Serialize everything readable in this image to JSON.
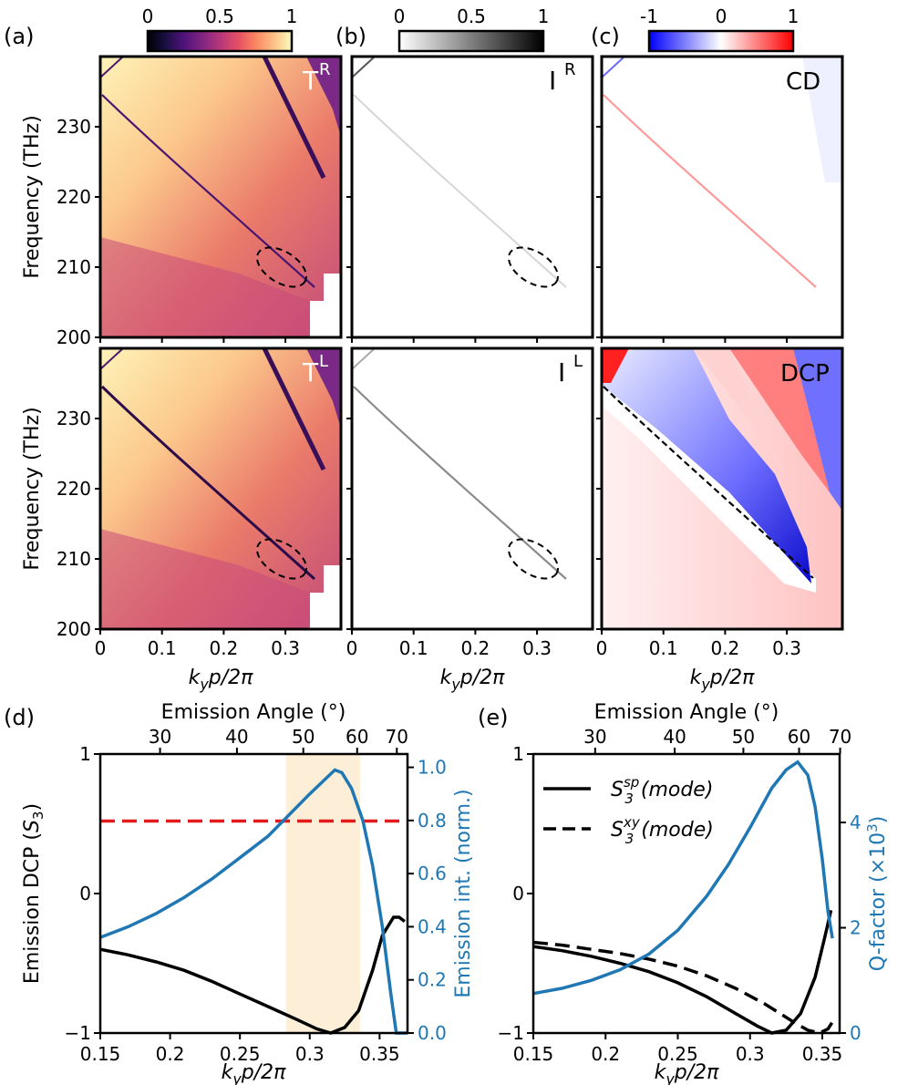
{
  "colors": {
    "emission_blue": "#1f77b4",
    "highlight": "#fdebd0",
    "dcp_threshold_red": "#e31a1c",
    "cd_negative": "#1a1aff",
    "cd_positive": "#ff1a1a"
  },
  "panel_labels": {
    "a": "(a)",
    "b": "(b)",
    "c": "(c)",
    "d": "(d)",
    "e": "(e)"
  },
  "colorbars": [
    {
      "id": "magma",
      "ticks": [
        "0",
        "0.5",
        "1"
      ],
      "range": [
        0,
        1
      ]
    },
    {
      "id": "greys",
      "ticks": [
        "0",
        "0.5",
        "1"
      ],
      "range": [
        0,
        1
      ]
    },
    {
      "id": "bwr",
      "ticks": [
        "-1",
        "0",
        "1"
      ],
      "range": [
        -1,
        1
      ]
    }
  ],
  "maps": {
    "ylabel": "Frequency (THz)",
    "xlabel": "k_y p/2π",
    "yticks": [
      "200",
      "210",
      "220",
      "230"
    ],
    "ytick_values": [
      200,
      210,
      220,
      230
    ],
    "xticks": [
      "0",
      "0.1",
      "0.2",
      "0.3"
    ],
    "xtick_values": [
      0,
      0.1,
      0.2,
      0.3
    ],
    "ylim": [
      200,
      240
    ],
    "xlim": [
      0,
      0.39
    ],
    "labels": {
      "TR": {
        "base": "T",
        "sup": "R"
      },
      "TL": {
        "base": "T",
        "sup": "L"
      },
      "IR": {
        "base": "I",
        "sup": "R"
      },
      "IL": {
        "base": "I",
        "sup": "L"
      },
      "CD": {
        "base": "CD",
        "sup": ""
      },
      "DCP": {
        "base": "DCP",
        "sup": ""
      }
    }
  },
  "chart_data": [
    {
      "panel": "d",
      "type": "line",
      "title": "",
      "top_xlabel": "Emission Angle (°)",
      "top_ticks": [
        "30",
        "40",
        "50",
        "60",
        "70"
      ],
      "top_tick_deg": [
        30,
        40,
        50,
        60,
        70
      ],
      "xlabel": "k_y p/2π",
      "xticks": [
        "0.15",
        "0.2",
        "0.25",
        "0.3",
        "0.35"
      ],
      "xtick_values": [
        0.15,
        0.2,
        0.25,
        0.3,
        0.35
      ],
      "xlim": [
        0.15,
        0.37
      ],
      "ylabel_left": "Emission DCP (S3)",
      "yticks_left": [
        "−1",
        "0",
        "1"
      ],
      "ytick_left_values": [
        -1,
        0,
        1
      ],
      "ylim_left": [
        -1,
        1
      ],
      "ylabel_right": "Emission int. (norm.)",
      "yticks_right": [
        "0.0",
        "0.2",
        "0.4",
        "0.6",
        "0.8",
        "1.0"
      ],
      "ytick_right_values": [
        0,
        0.2,
        0.4,
        0.6,
        0.8,
        1.0
      ],
      "ylim_right": [
        0,
        1.05
      ],
      "highlight_x": [
        0.283,
        0.336
      ],
      "threshold_left": 0.52,
      "series": [
        {
          "name": "Emission DCP",
          "axis": "left",
          "color": "#000000",
          "x": [
            0.15,
            0.17,
            0.19,
            0.21,
            0.23,
            0.25,
            0.27,
            0.29,
            0.305,
            0.315,
            0.325,
            0.335,
            0.345,
            0.352,
            0.36,
            0.364,
            0.368
          ],
          "y": [
            -0.4,
            -0.44,
            -0.49,
            -0.55,
            -0.63,
            -0.72,
            -0.81,
            -0.9,
            -0.97,
            -1.0,
            -0.96,
            -0.84,
            -0.55,
            -0.3,
            -0.17,
            -0.17,
            -0.2
          ]
        },
        {
          "name": "Emission int.",
          "axis": "right",
          "color": "#1f77b4",
          "x": [
            0.15,
            0.17,
            0.19,
            0.21,
            0.23,
            0.25,
            0.27,
            0.285,
            0.3,
            0.31,
            0.318,
            0.323,
            0.33,
            0.338,
            0.345,
            0.352,
            0.358,
            0.362,
            0.366,
            0.37
          ],
          "y": [
            0.36,
            0.4,
            0.45,
            0.51,
            0.58,
            0.66,
            0.74,
            0.82,
            0.9,
            0.95,
            0.99,
            0.98,
            0.92,
            0.8,
            0.63,
            0.4,
            0.15,
            0.0,
            0.0,
            0.0
          ]
        }
      ]
    },
    {
      "panel": "e",
      "type": "line",
      "title": "",
      "top_xlabel": "Emission Angle (°)",
      "top_ticks": [
        "30",
        "40",
        "50",
        "60",
        "70"
      ],
      "top_tick_deg": [
        30,
        40,
        50,
        60,
        70
      ],
      "xlabel": "k_y p/2π",
      "xticks": [
        "0.15",
        "0.2",
        "0.25",
        "0.3",
        "0.35"
      ],
      "xtick_values": [
        0.15,
        0.2,
        0.25,
        0.3,
        0.35
      ],
      "xlim": [
        0.15,
        0.362
      ],
      "ylabel_right": "Q-factor (×10^3)",
      "yticks_left": [
        "−1",
        "0",
        "1"
      ],
      "ytick_left_values": [
        -1,
        0,
        1
      ],
      "ylim_left": [
        -1,
        1
      ],
      "yticks_right": [
        "0",
        "2",
        "4"
      ],
      "ytick_right_values": [
        0,
        2,
        4
      ],
      "ylim_right": [
        0,
        5.3
      ],
      "legend": [
        {
          "label": "S3^sp(mode)",
          "style": "solid"
        },
        {
          "label": "S3^xy(mode)",
          "style": "dashed"
        }
      ],
      "series": [
        {
          "name": "S3^sp(mode)",
          "axis": "left",
          "style": "solid",
          "color": "#000000",
          "x": [
            0.15,
            0.17,
            0.19,
            0.21,
            0.23,
            0.25,
            0.27,
            0.29,
            0.305,
            0.315,
            0.325,
            0.335,
            0.345,
            0.352,
            0.356
          ],
          "y": [
            -0.38,
            -0.41,
            -0.45,
            -0.5,
            -0.56,
            -0.64,
            -0.74,
            -0.86,
            -0.95,
            -1.0,
            -0.98,
            -0.86,
            -0.6,
            -0.3,
            -0.12
          ]
        },
        {
          "name": "S3^xy(mode)",
          "axis": "left",
          "style": "dashed",
          "color": "#000000",
          "x": [
            0.15,
            0.17,
            0.19,
            0.21,
            0.23,
            0.25,
            0.27,
            0.29,
            0.31,
            0.33,
            0.34,
            0.348,
            0.354,
            0.357
          ],
          "y": [
            -0.35,
            -0.37,
            -0.4,
            -0.43,
            -0.47,
            -0.52,
            -0.59,
            -0.68,
            -0.79,
            -0.92,
            -0.98,
            -1.0,
            -0.97,
            -0.92
          ]
        },
        {
          "name": "Q-factor",
          "axis": "right",
          "style": "solid",
          "color": "#1f77b4",
          "x": [
            0.15,
            0.17,
            0.19,
            0.21,
            0.23,
            0.25,
            0.27,
            0.285,
            0.3,
            0.315,
            0.325,
            0.333,
            0.34,
            0.345,
            0.35,
            0.354,
            0.357
          ],
          "y": [
            0.75,
            0.85,
            1.0,
            1.2,
            1.5,
            1.95,
            2.6,
            3.2,
            3.9,
            4.65,
            5.0,
            5.15,
            4.9,
            4.3,
            3.3,
            2.3,
            1.8
          ]
        }
      ]
    }
  ]
}
